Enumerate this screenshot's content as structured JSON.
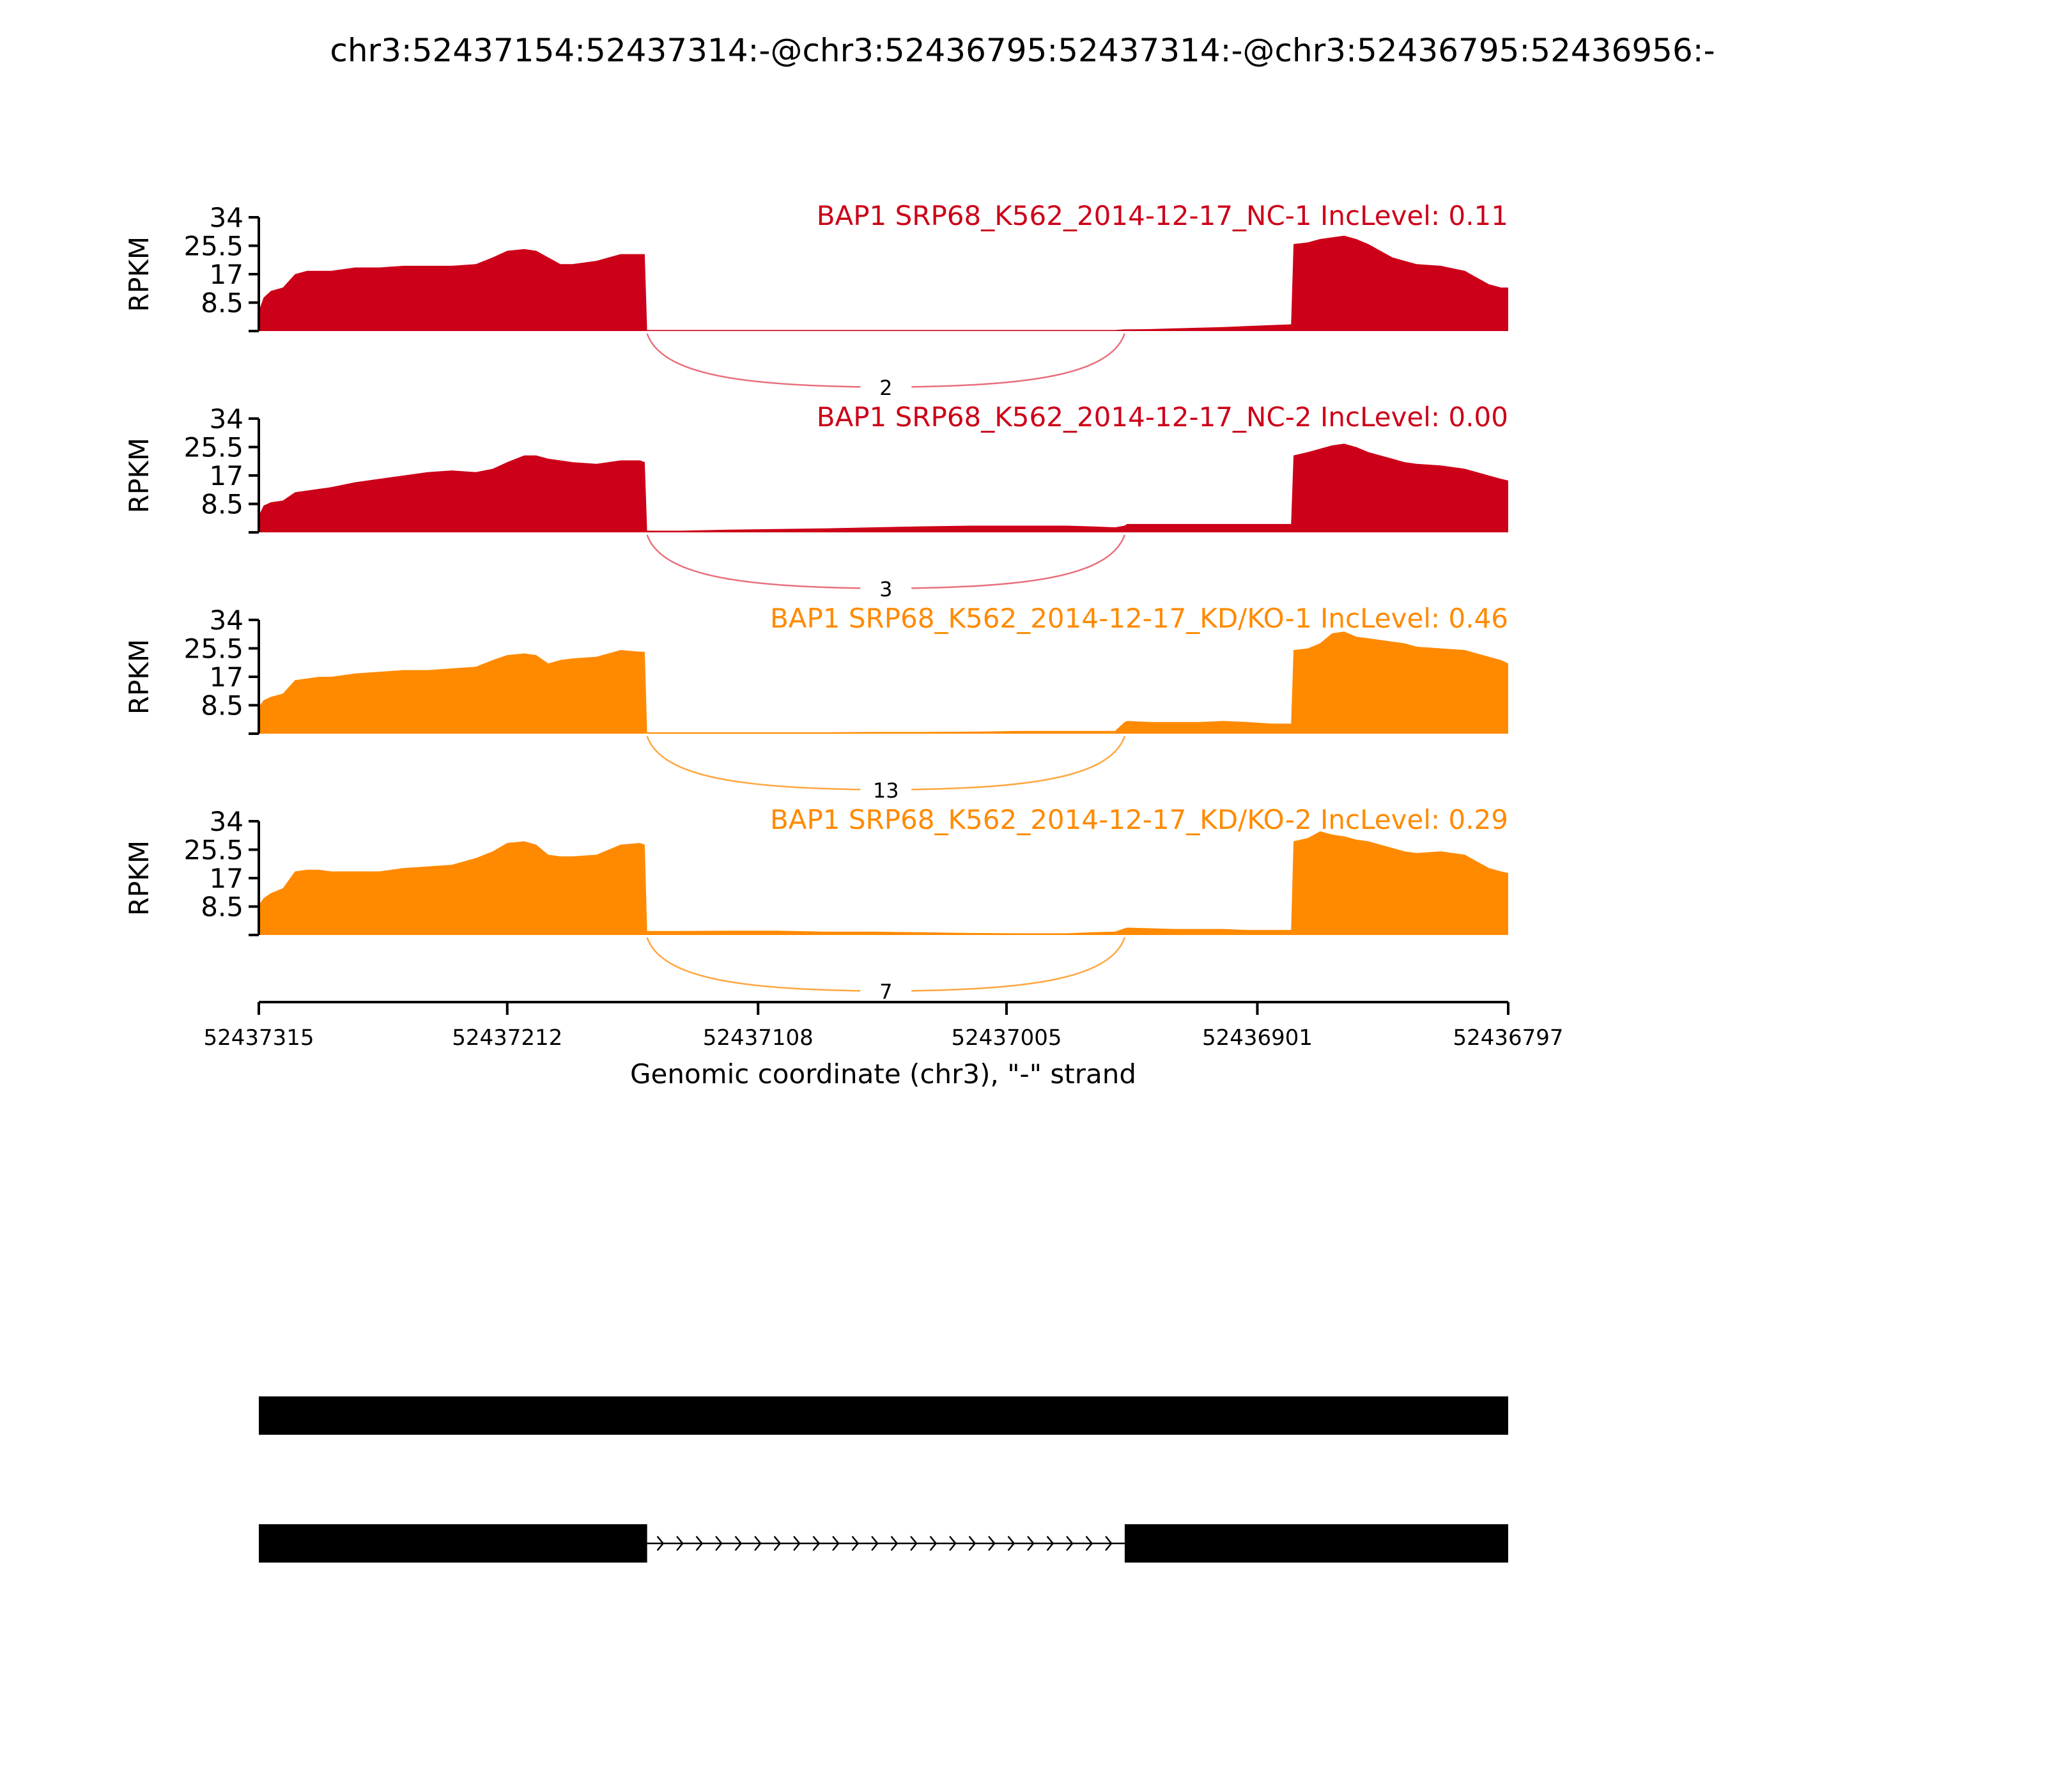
{
  "chart_data": {
    "type": "area",
    "title": "chr3:52437154:52437314:-@chr3:52436795:52437314:-@chr3:52436795:52436956:-",
    "xlabel": "Genomic coordinate (chr3), \"-\" strand",
    "ylabel": "RPKM",
    "xlim": [
      52437315,
      52436797
    ],
    "x_ticks": [
      "52437315",
      "52437212",
      "52437108",
      "52437005",
      "52436901",
      "52436797"
    ],
    "ylim": [
      0,
      34
    ],
    "y_ticks": [
      "8.5",
      "17",
      "25.5",
      "34"
    ],
    "grid": false,
    "x": [
      52437315,
      52437313,
      52437310,
      52437305,
      52437300,
      52437295,
      52437290,
      52437285,
      52437275,
      52437265,
      52437255,
      52437245,
      52437235,
      52437225,
      52437218,
      52437212,
      52437205,
      52437200,
      52437195,
      52437190,
      52437185,
      52437175,
      52437165,
      52437157,
      52437155,
      52437154,
      52437140,
      52437120,
      52437100,
      52437080,
      52437060,
      52437040,
      52437020,
      52437000,
      52436980,
      52436970,
      52436960,
      52436956,
      52436955,
      52436945,
      52436935,
      52436925,
      52436915,
      52436905,
      52436895,
      52436887,
      52436886,
      52436880,
      52436875,
      52436870,
      52436865,
      52436860,
      52436855,
      52436850,
      52436845,
      52436840,
      52436835,
      52436825,
      52436815,
      52436810,
      52436805,
      52436800,
      52436797
    ],
    "series": [
      {
        "name": "BAP1 SRP68_K562_2014-12-17_NC-1 IncLevel: 0.11",
        "color": "#cc0018",
        "values": [
          6,
          10,
          12,
          13,
          17,
          18,
          18,
          18,
          19,
          19,
          19.5,
          19.5,
          19.5,
          20,
          22,
          24,
          24.5,
          24,
          22,
          20,
          20,
          21,
          23,
          23,
          23,
          0.3,
          0.3,
          0.3,
          0.3,
          0.3,
          0.3,
          0.3,
          0.3,
          0.3,
          0.3,
          0.3,
          0.3,
          0.5,
          0.5,
          0.6,
          0.8,
          1,
          1.2,
          1.5,
          1.8,
          2,
          26,
          26.5,
          27.5,
          28,
          28.5,
          27.5,
          26,
          24,
          22,
          21,
          20,
          19.5,
          18,
          16,
          14,
          13,
          13
        ]
      },
      {
        "name": "BAP1 SRP68_K562_2014-12-17_NC-2 IncLevel: 0.00",
        "color": "#cc0018",
        "values": [
          5,
          8,
          9,
          9.5,
          12,
          12.5,
          13,
          13.5,
          15,
          16,
          17,
          18,
          18.5,
          18,
          19,
          21,
          23,
          23,
          22,
          21.5,
          21,
          20.5,
          21.5,
          21.5,
          21,
          0.5,
          0.5,
          0.8,
          1,
          1.2,
          1.5,
          1.8,
          2,
          2,
          2,
          1.8,
          1.5,
          2,
          2.5,
          2.5,
          2.5,
          2.5,
          2.5,
          2.5,
          2.5,
          2.5,
          23,
          24,
          25,
          26,
          26.5,
          25.5,
          24,
          23,
          22,
          21,
          20.5,
          20,
          19,
          18,
          17,
          16,
          15.5
        ]
      },
      {
        "name": "BAP1 SRP68_K562_2014-12-17_KD/KO-1 IncLevel: 0.46",
        "color": "#ff8a00",
        "values": [
          8,
          10,
          11,
          12,
          16,
          16.5,
          17,
          17,
          18,
          18.5,
          19,
          19,
          19.5,
          20,
          22,
          23.5,
          24,
          23.5,
          21,
          22,
          22.5,
          23,
          25,
          24.5,
          24.5,
          0.4,
          0.4,
          0.4,
          0.4,
          0.4,
          0.5,
          0.5,
          0.6,
          0.8,
          0.8,
          0.8,
          0.8,
          3.5,
          3.8,
          3.5,
          3.5,
          3.5,
          3.8,
          3.5,
          3,
          3,
          25,
          25.5,
          27,
          30,
          30.5,
          29,
          28.5,
          28,
          27.5,
          27,
          26,
          25.5,
          25,
          24,
          23,
          22,
          21
        ]
      },
      {
        "name": "BAP1 SRP68_K562_2014-12-17_KD/KO-2 IncLevel: 0.29",
        "color": "#ff8a00",
        "values": [
          9,
          11,
          12.5,
          14,
          19,
          19.5,
          19.5,
          19,
          19,
          19,
          20,
          20.5,
          21,
          23,
          25,
          27.5,
          28,
          27,
          24,
          23.5,
          23.5,
          24,
          27,
          27.5,
          27,
          1.2,
          1.2,
          1.3,
          1.3,
          1,
          1,
          0.8,
          0.6,
          0.5,
          0.5,
          0.8,
          1,
          2,
          2.2,
          2,
          1.8,
          1.8,
          1.8,
          1.5,
          1.5,
          1.5,
          28,
          29,
          31,
          30,
          29.5,
          28.5,
          28,
          27,
          26,
          25,
          24.5,
          25,
          24,
          22,
          20,
          19,
          18.5
        ]
      }
    ],
    "junctions": [
      {
        "count": "2",
        "color": "#e8707c"
      },
      {
        "count": "3",
        "color": "#e8707c"
      },
      {
        "count": "13",
        "color": "#ffa640"
      },
      {
        "count": "7",
        "color": "#ffa640"
      }
    ],
    "junction_span": [
      52437154,
      52436956
    ],
    "isoforms": [
      {
        "blocks": [
          [
            52437315,
            52436797
          ]
        ]
      },
      {
        "blocks": [
          [
            52437315,
            52437154
          ],
          [
            52436956,
            52436797
          ]
        ]
      }
    ]
  }
}
